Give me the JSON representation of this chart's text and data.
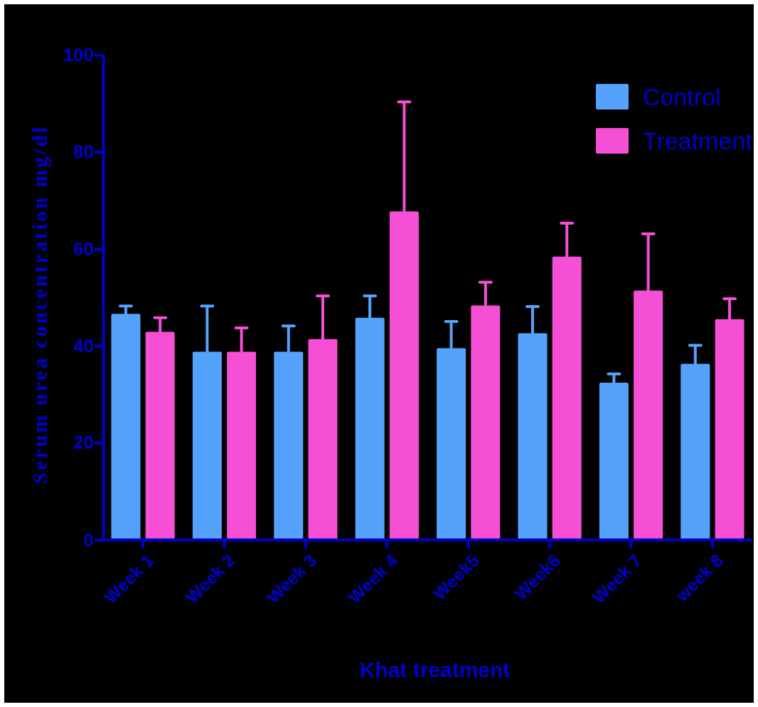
{
  "chart_data": {
    "type": "bar",
    "xlabel": "Khat treatment",
    "ylabel": "Serum urea concentration mg/dl",
    "categories": [
      "Week 1",
      "Week 2",
      "Week 3",
      "Week 4",
      "Week5",
      "Week6",
      "Week 7",
      "week 8"
    ],
    "series": [
      {
        "name": "Control",
        "color": "#55a2fc",
        "values": [
          46.6,
          38.8,
          38.8,
          45.8,
          39.5,
          42.6,
          32.4,
          36.3
        ],
        "errors": [
          [
            46.6,
            48.2
          ],
          [
            38.8,
            48.2
          ],
          [
            38.8,
            44.1
          ],
          [
            45.8,
            50.3
          ],
          [
            39.5,
            45.0
          ],
          [
            42.6,
            48.1
          ],
          [
            32.4,
            34.2
          ],
          [
            36.3,
            40.1
          ]
        ]
      },
      {
        "name": "Treatment",
        "color": "#f44fd5",
        "values": [
          42.9,
          38.8,
          41.4,
          67.7,
          48.3,
          58.4,
          51.4,
          45.5
        ],
        "errors": [
          [
            42.9,
            45.8
          ],
          [
            38.8,
            43.7
          ],
          [
            41.4,
            50.3
          ],
          [
            67.7,
            90.3
          ],
          [
            48.3,
            53.1
          ],
          [
            58.4,
            65.3
          ],
          [
            51.4,
            63.1
          ],
          [
            45.5,
            49.7
          ]
        ]
      }
    ],
    "ylim": [
      0,
      100
    ],
    "yticks": [
      0,
      20,
      40,
      60,
      80,
      100
    ],
    "grid": false,
    "legend": "top right"
  }
}
